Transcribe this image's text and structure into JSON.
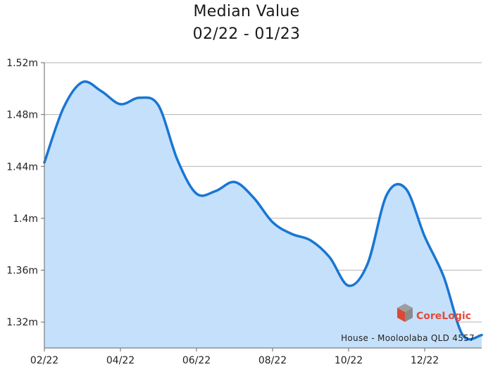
{
  "chart_data": {
    "type": "area",
    "title": "Median Value",
    "subtitle": "02/22 - 01/23",
    "xlabel": "",
    "ylabel": "",
    "x_tick_labels": [
      "02/22",
      "04/22",
      "06/22",
      "08/22",
      "10/22",
      "12/22"
    ],
    "y_tick_labels": [
      "1.32m",
      "1.36m",
      "1.4m",
      "1.44m",
      "1.48m",
      "1.52m"
    ],
    "y_ticks": [
      1.32,
      1.36,
      1.4,
      1.44,
      1.48,
      1.52
    ],
    "ylim": [
      1.3,
      1.52
    ],
    "grid": "horizontal",
    "series": [
      {
        "x": [
          0,
          0.5,
          1,
          1.5,
          2,
          2.5,
          3,
          3.5,
          4,
          4.5,
          5,
          5.5,
          6,
          6.5,
          7,
          7.5,
          8,
          8.5,
          9,
          9.5,
          10,
          10.5,
          11,
          11.5
        ],
        "values": [
          1.443,
          1.485,
          1.505,
          1.498,
          1.488,
          1.493,
          1.487,
          1.445,
          1.419,
          1.421,
          1.428,
          1.416,
          1.397,
          1.388,
          1.383,
          1.37,
          1.348,
          1.365,
          1.418,
          1.423,
          1.386,
          1.355,
          1.31,
          1.31
        ]
      }
    ],
    "annotation": "House - Mooloolaba QLD 4557",
    "logo_text": "CoreLogic",
    "colors": {
      "line": "#1976d2",
      "fill": "#c5e0fb",
      "grid": "#b3b3b3",
      "logo": "#e24b3a"
    }
  }
}
